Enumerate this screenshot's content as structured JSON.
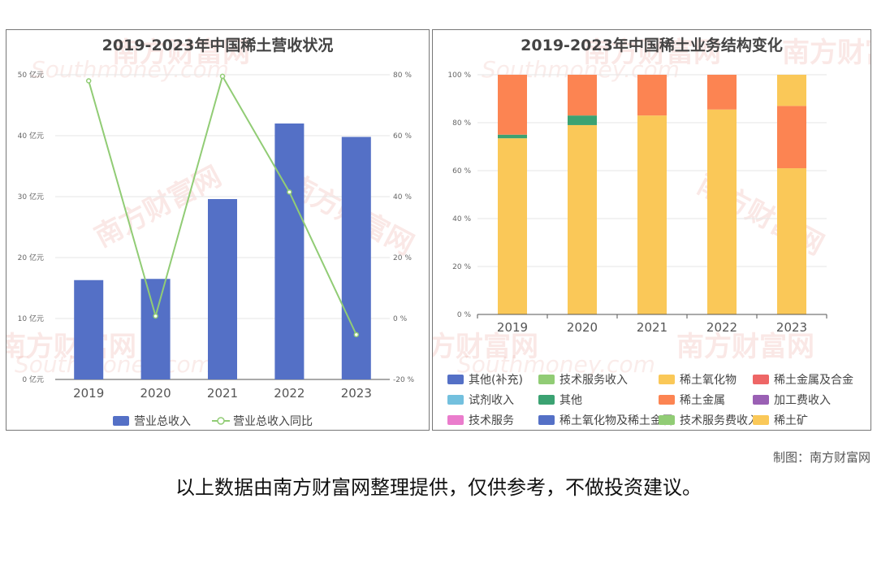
{
  "left_chart": {
    "title": "2019-2023年中国稀土营收状况",
    "legend": [
      "营业总收入",
      "营业总收入同比"
    ]
  },
  "right_chart": {
    "title": "2019-2023年中国稀土业务结构变化",
    "legend": [
      {
        "label": "其他(补充)",
        "color": "#5470c6"
      },
      {
        "label": "技术服务收入",
        "color": "#91cc75"
      },
      {
        "label": "稀土氧化物",
        "color": "#fac858"
      },
      {
        "label": "稀土金属及合金",
        "color": "#ee6666"
      },
      {
        "label": "试剂收入",
        "color": "#73c0de"
      },
      {
        "label": "其他",
        "color": "#3ba272"
      },
      {
        "label": "稀土金属",
        "color": "#fc8452"
      },
      {
        "label": "加工费收入",
        "color": "#9a60b4"
      },
      {
        "label": "技术服务",
        "color": "#ea7ccc"
      },
      {
        "label": "稀土氧化物及稀土金属",
        "color": "#5470c6"
      },
      {
        "label": "技术服务费收入",
        "color": "#91cc75"
      },
      {
        "label": "稀土矿",
        "color": "#fac858"
      }
    ]
  },
  "watermark": {
    "cn": "南方财富网",
    "en": "Southmoney.com"
  },
  "credit": "制图：南方财富网",
  "disclaimer": "以上数据由南方财富网整理提供，仅供参考，不做投资建议。",
  "chart_data": [
    {
      "type": "bar",
      "title": "2019-2023年中国稀土营收状况",
      "categories": [
        "2019",
        "2020",
        "2021",
        "2022",
        "2023"
      ],
      "y_ticks": [
        "0 亿元",
        "10 亿元",
        "20 亿元",
        "30 亿元",
        "40 亿元",
        "50 亿元"
      ],
      "y2_ticks": [
        "-20 %",
        "0 %",
        "20 %",
        "40 %",
        "60 %",
        "80 %"
      ],
      "ylim": [
        0,
        50
      ],
      "y2lim": [
        -20,
        80
      ],
      "series": [
        {
          "name": "营业总收入",
          "type": "bar",
          "axis": "left",
          "color": "#5470c6",
          "values": [
            16.3,
            16.5,
            29.6,
            42.0,
            39.8
          ]
        },
        {
          "name": "营业总收入同比",
          "type": "line",
          "axis": "right",
          "color": "#91cc75",
          "values": [
            78.0,
            0.8,
            79.5,
            41.5,
            -5.3
          ]
        }
      ]
    },
    {
      "type": "bar",
      "stacked": true,
      "title": "2019-2023年中国稀土业务结构变化",
      "categories": [
        "2019",
        "2020",
        "2021",
        "2022",
        "2023"
      ],
      "y_ticks": [
        "0 %",
        "20 %",
        "40 %",
        "60 %",
        "80 %",
        "100 %"
      ],
      "ylim": [
        0,
        100
      ],
      "series": [
        {
          "name": "稀土氧化物",
          "color": "#fac858",
          "values": [
            73.5,
            79.0,
            83.0,
            85.5,
            61.0
          ]
        },
        {
          "name": "其他",
          "color": "#3ba272",
          "values": [
            1.5,
            4.0,
            0,
            0,
            0
          ]
        },
        {
          "name": "稀土金属",
          "color": "#fc8452",
          "values": [
            25.0,
            17.0,
            17.0,
            14.5,
            26.0
          ]
        },
        {
          "name": "稀土矿",
          "color": "#fac858",
          "values": [
            0,
            0,
            0,
            0,
            13.0
          ]
        }
      ]
    }
  ]
}
